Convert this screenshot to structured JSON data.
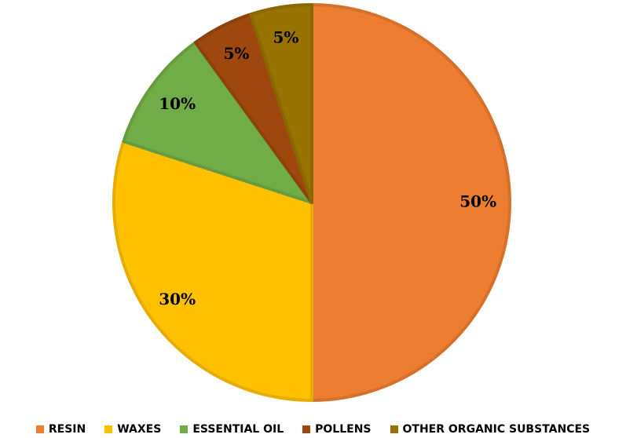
{
  "chart_data": {
    "type": "pie",
    "title": "",
    "legend_position": "bottom",
    "slices": [
      {
        "label": "RESIN",
        "value": 50,
        "display": "50%",
        "color": "#ED7D31"
      },
      {
        "label": "WAXES",
        "value": 30,
        "display": "30%",
        "color": "#FFC000"
      },
      {
        "label": "ESSENTIAL OIL",
        "value": 10,
        "display": "10%",
        "color": "#70AD47"
      },
      {
        "label": "POLLENS",
        "value": 5,
        "display": "5%",
        "color": "#9E480E"
      },
      {
        "label": "OTHER ORGANIC SUBSTANCES",
        "value": 5,
        "display": "5%",
        "color": "#997300"
      }
    ]
  }
}
